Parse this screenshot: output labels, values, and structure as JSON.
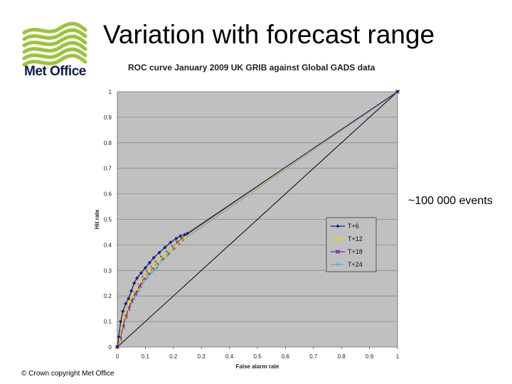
{
  "slide": {
    "title": "Variation with forecast range",
    "annotation": "~100 000 events",
    "copyright": "© Crown copyright   Met Office"
  },
  "logo": {
    "text": "Met Office",
    "brand_color": "#9cc33a",
    "text_color": "#0b1f4e"
  },
  "chart_data": {
    "type": "line",
    "title": "ROC curve January 2009 UK GRIB against Global GADS data",
    "xlabel": "False alarm rate",
    "ylabel": "Hit rate",
    "xlim": [
      0,
      1
    ],
    "ylim": [
      0,
      1
    ],
    "xticks": [
      "0",
      "0.1",
      "0.2",
      "0.3",
      "0.4",
      "0.5",
      "0.6",
      "0.7",
      "0.8",
      "0.9",
      "1"
    ],
    "yticks": [
      "0",
      "0.1",
      "0.2",
      "0.3",
      "0.4",
      "0.5",
      "0.6",
      "0.7",
      "0.8",
      "0.9",
      "1"
    ],
    "grid": true,
    "legend": "right",
    "plot_background": "#c0c0c0",
    "diagonal_reference": true,
    "series": [
      {
        "name": "T+6",
        "color": "#1a237e",
        "marker": "diamond",
        "x": [
          0,
          0.005,
          0.012,
          0.02,
          0.03,
          0.04,
          0.05,
          0.06,
          0.07,
          0.085,
          0.1,
          0.115,
          0.13,
          0.15,
          0.17,
          0.19,
          0.21,
          0.225,
          0.24,
          0.25,
          1
        ],
        "y": [
          0,
          0.04,
          0.1,
          0.14,
          0.17,
          0.19,
          0.22,
          0.25,
          0.27,
          0.29,
          0.31,
          0.33,
          0.35,
          0.37,
          0.39,
          0.41,
          0.425,
          0.435,
          0.44,
          0.445,
          1
        ]
      },
      {
        "name": "T+12",
        "color": "#f2d600",
        "marker": "triangle",
        "x": [
          0,
          0.008,
          0.015,
          0.025,
          0.035,
          0.045,
          0.055,
          0.07,
          0.085,
          0.1,
          0.115,
          0.13,
          0.15,
          0.17,
          0.19,
          0.21,
          0.225,
          0.24,
          1
        ],
        "y": [
          0,
          0.03,
          0.08,
          0.12,
          0.15,
          0.18,
          0.2,
          0.23,
          0.26,
          0.28,
          0.3,
          0.32,
          0.34,
          0.36,
          0.38,
          0.4,
          0.415,
          0.43,
          1
        ]
      },
      {
        "name": "T+18",
        "color": "#7b1fa2",
        "marker": "x",
        "x": [
          0,
          0.01,
          0.02,
          0.03,
          0.04,
          0.05,
          0.065,
          0.08,
          0.095,
          0.11,
          0.125,
          0.14,
          0.16,
          0.18,
          0.2,
          0.215,
          0.23,
          1
        ],
        "y": [
          0,
          0.03,
          0.08,
          0.12,
          0.15,
          0.18,
          0.21,
          0.24,
          0.27,
          0.29,
          0.31,
          0.33,
          0.35,
          0.37,
          0.39,
          0.41,
          0.425,
          1
        ]
      },
      {
        "name": "T+24",
        "color": "#5aa9d6",
        "marker": "plus",
        "x": [
          0,
          0.01,
          0.02,
          0.03,
          0.045,
          0.06,
          0.075,
          0.09,
          0.105,
          0.12,
          0.14,
          0.16,
          0.18,
          0.2,
          0.22,
          0.235,
          1
        ],
        "y": [
          0,
          0.03,
          0.08,
          0.12,
          0.16,
          0.19,
          0.22,
          0.25,
          0.27,
          0.29,
          0.31,
          0.34,
          0.36,
          0.385,
          0.405,
          0.42,
          1
        ]
      }
    ]
  }
}
